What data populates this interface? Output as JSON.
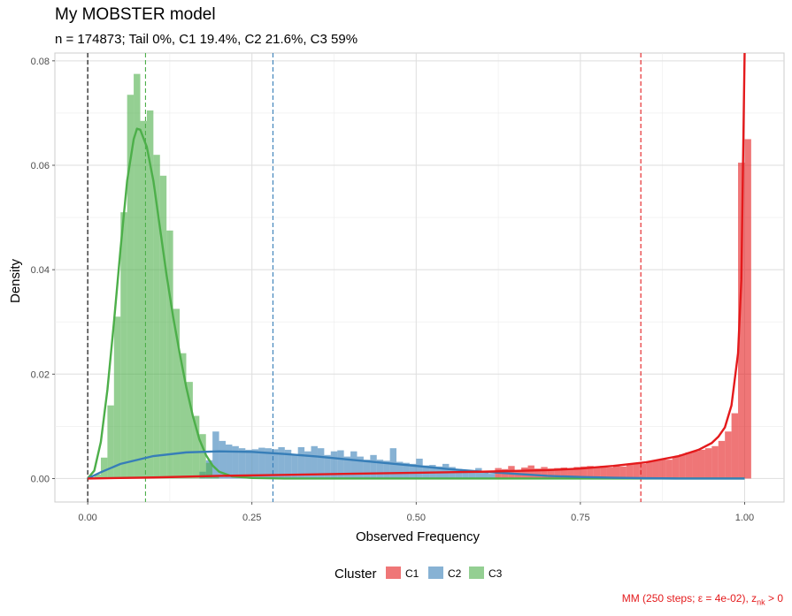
{
  "chart_data": {
    "type": "bar",
    "title": "My MOBSTER model",
    "subtitle": "n = 174873; Tail 0%, C1 19.4%, C2 21.6%, C3 59%",
    "xlabel": "Observed Frequency",
    "ylabel": "Density",
    "xlim": [
      -0.05,
      1.06
    ],
    "ylim": [
      -0.0045,
      0.0815
    ],
    "x_ticks": [
      0,
      0.25,
      0.5,
      0.75,
      1
    ],
    "x_tick_labels": [
      "0.00",
      "0.25",
      "0.50",
      "0.75",
      "1.00"
    ],
    "y_ticks": [
      0,
      0.02,
      0.04,
      0.06,
      0.08
    ],
    "y_tick_labels": [
      "0.00",
      "0.02",
      "0.04",
      "0.06",
      "0.08"
    ],
    "grid": true,
    "legend": {
      "title": "Cluster",
      "position": "bottom",
      "entries": [
        "C1",
        "C2",
        "C3"
      ]
    },
    "caption_main": "MM (250 steps; ε = 4e-02), z",
    "caption_sub": "nk",
    "caption_tail": " > 0",
    "bin_width": 0.01,
    "series": [
      {
        "name": "C3",
        "color": "#4daf4a",
        "bins": [
          [
            0.005,
            0.0002
          ],
          [
            0.015,
            0.0008
          ],
          [
            0.025,
            0.004
          ],
          [
            0.035,
            0.014
          ],
          [
            0.045,
            0.031
          ],
          [
            0.055,
            0.051
          ],
          [
            0.065,
            0.0735
          ],
          [
            0.075,
            0.0775
          ],
          [
            0.085,
            0.0685
          ],
          [
            0.095,
            0.0705
          ],
          [
            0.105,
            0.062
          ],
          [
            0.115,
            0.058
          ],
          [
            0.125,
            0.0475
          ],
          [
            0.135,
            0.0325
          ],
          [
            0.145,
            0.024
          ],
          [
            0.155,
            0.0185
          ],
          [
            0.165,
            0.012
          ],
          [
            0.175,
            0.0085
          ],
          [
            0.185,
            0.003
          ],
          [
            0.195,
            0.0003
          ]
        ],
        "density": [
          [
            0.0,
            0.0
          ],
          [
            0.01,
            0.0015
          ],
          [
            0.02,
            0.007
          ],
          [
            0.03,
            0.017
          ],
          [
            0.04,
            0.03
          ],
          [
            0.05,
            0.044
          ],
          [
            0.06,
            0.057
          ],
          [
            0.07,
            0.065
          ],
          [
            0.075,
            0.067
          ],
          [
            0.08,
            0.0668
          ],
          [
            0.09,
            0.0635
          ],
          [
            0.1,
            0.057
          ],
          [
            0.11,
            0.048
          ],
          [
            0.12,
            0.039
          ],
          [
            0.13,
            0.031
          ],
          [
            0.14,
            0.024
          ],
          [
            0.15,
            0.0175
          ],
          [
            0.16,
            0.012
          ],
          [
            0.17,
            0.0075
          ],
          [
            0.18,
            0.0045
          ],
          [
            0.19,
            0.0025
          ],
          [
            0.2,
            0.0013
          ],
          [
            0.22,
            0.0004
          ],
          [
            0.25,
            0.0001
          ],
          [
            0.3,
            0.0
          ],
          [
            1.0,
            0.0
          ]
        ]
      },
      {
        "name": "C2",
        "color": "#377eb8",
        "bins": [
          [
            0.175,
            0.0013
          ],
          [
            0.185,
            0.0035
          ],
          [
            0.195,
            0.009
          ],
          [
            0.205,
            0.0072
          ],
          [
            0.215,
            0.0065
          ],
          [
            0.225,
            0.0062
          ],
          [
            0.235,
            0.0058
          ],
          [
            0.245,
            0.0055
          ],
          [
            0.255,
            0.0056
          ],
          [
            0.265,
            0.0059
          ],
          [
            0.275,
            0.0058
          ],
          [
            0.285,
            0.0056
          ],
          [
            0.295,
            0.006
          ],
          [
            0.305,
            0.0055
          ],
          [
            0.315,
            0.0045
          ],
          [
            0.325,
            0.006
          ],
          [
            0.335,
            0.0052
          ],
          [
            0.345,
            0.0062
          ],
          [
            0.355,
            0.0058
          ],
          [
            0.365,
            0.0045
          ],
          [
            0.375,
            0.0052
          ],
          [
            0.385,
            0.0054
          ],
          [
            0.395,
            0.0042
          ],
          [
            0.405,
            0.0052
          ],
          [
            0.415,
            0.0042
          ],
          [
            0.425,
            0.0036
          ],
          [
            0.435,
            0.0045
          ],
          [
            0.445,
            0.0036
          ],
          [
            0.455,
            0.0034
          ],
          [
            0.465,
            0.0058
          ],
          [
            0.475,
            0.0032
          ],
          [
            0.485,
            0.003
          ],
          [
            0.495,
            0.0028
          ],
          [
            0.505,
            0.0038
          ],
          [
            0.515,
            0.0025
          ],
          [
            0.525,
            0.0026
          ],
          [
            0.535,
            0.0023
          ],
          [
            0.545,
            0.0028
          ],
          [
            0.555,
            0.0022
          ],
          [
            0.565,
            0.0018
          ],
          [
            0.575,
            0.0016
          ],
          [
            0.585,
            0.0015
          ],
          [
            0.595,
            0.002
          ],
          [
            0.605,
            0.0012
          ],
          [
            0.615,
            0.0009
          ]
        ],
        "density": [
          [
            0.0,
            0.0
          ],
          [
            0.02,
            0.0012
          ],
          [
            0.05,
            0.0028
          ],
          [
            0.1,
            0.0043
          ],
          [
            0.15,
            0.005
          ],
          [
            0.2,
            0.0052
          ],
          [
            0.25,
            0.0051
          ],
          [
            0.3,
            0.0047
          ],
          [
            0.35,
            0.0042
          ],
          [
            0.4,
            0.0036
          ],
          [
            0.45,
            0.003
          ],
          [
            0.5,
            0.0024
          ],
          [
            0.55,
            0.0018
          ],
          [
            0.6,
            0.0013
          ],
          [
            0.65,
            0.0009
          ],
          [
            0.7,
            0.0005
          ],
          [
            0.75,
            0.0003
          ],
          [
            0.8,
            0.00015
          ],
          [
            0.85,
            5e-05
          ],
          [
            0.9,
            0.0
          ],
          [
            1.0,
            0.0
          ]
        ]
      },
      {
        "name": "C1",
        "color": "#e41a1c",
        "bins": [
          [
            0.625,
            0.002
          ],
          [
            0.635,
            0.0018
          ],
          [
            0.645,
            0.0024
          ],
          [
            0.655,
            0.0016
          ],
          [
            0.665,
            0.0021
          ],
          [
            0.675,
            0.0025
          ],
          [
            0.685,
            0.0019
          ],
          [
            0.695,
            0.0022
          ],
          [
            0.705,
            0.0019
          ],
          [
            0.715,
            0.002
          ],
          [
            0.725,
            0.0021
          ],
          [
            0.735,
            0.0019
          ],
          [
            0.745,
            0.0022
          ],
          [
            0.755,
            0.0023
          ],
          [
            0.765,
            0.0024
          ],
          [
            0.775,
            0.0022
          ],
          [
            0.785,
            0.0024
          ],
          [
            0.795,
            0.0021
          ],
          [
            0.805,
            0.0025
          ],
          [
            0.815,
            0.0023
          ],
          [
            0.825,
            0.0027
          ],
          [
            0.835,
            0.003
          ],
          [
            0.845,
            0.0028
          ],
          [
            0.855,
            0.0032
          ],
          [
            0.865,
            0.0034
          ],
          [
            0.875,
            0.0038
          ],
          [
            0.885,
            0.0036
          ],
          [
            0.895,
            0.0042
          ],
          [
            0.905,
            0.0046
          ],
          [
            0.915,
            0.005
          ],
          [
            0.925,
            0.0052
          ],
          [
            0.935,
            0.0055
          ],
          [
            0.945,
            0.0058
          ],
          [
            0.955,
            0.0062
          ],
          [
            0.965,
            0.0072
          ],
          [
            0.975,
            0.009
          ],
          [
            0.985,
            0.0125
          ],
          [
            0.995,
            0.0605
          ],
          [
            1.005,
            0.065
          ]
        ],
        "density": [
          [
            0.0,
            0.0
          ],
          [
            0.1,
            0.0002
          ],
          [
            0.2,
            0.0005
          ],
          [
            0.3,
            0.0007
          ],
          [
            0.4,
            0.0009
          ],
          [
            0.5,
            0.0011
          ],
          [
            0.6,
            0.0013
          ],
          [
            0.7,
            0.0016
          ],
          [
            0.75,
            0.0019
          ],
          [
            0.8,
            0.0024
          ],
          [
            0.85,
            0.0031
          ],
          [
            0.9,
            0.0043
          ],
          [
            0.93,
            0.0055
          ],
          [
            0.95,
            0.0068
          ],
          [
            0.96,
            0.008
          ],
          [
            0.97,
            0.0098
          ],
          [
            0.98,
            0.014
          ],
          [
            0.99,
            0.024
          ],
          [
            0.995,
            0.038
          ],
          [
            1.0,
            0.084
          ]
        ]
      }
    ],
    "vlines": [
      {
        "x": 0.0,
        "color": "#000000"
      },
      {
        "x": 0.088,
        "color": "#4daf4a"
      },
      {
        "x": 0.282,
        "color": "#377eb8"
      },
      {
        "x": 0.842,
        "color": "#e41a1c"
      }
    ]
  }
}
